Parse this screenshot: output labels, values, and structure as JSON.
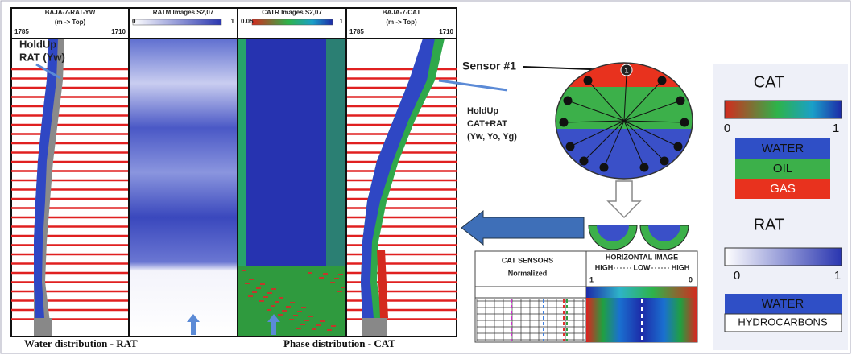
{
  "tracks": [
    {
      "title": "BAJA-7-RAT-YW",
      "subtitle": "(m -> Top)",
      "left": "1785",
      "right": "1710"
    },
    {
      "title": "RATM Images S2,07",
      "left": "0",
      "right": "1"
    },
    {
      "title": "CATR Images S2,07",
      "left": "0.05",
      "right": "1"
    },
    {
      "title": "BAJA-7-CAT",
      "subtitle": "(m -> Top)",
      "left": "1785",
      "right": "1710"
    }
  ],
  "annotations": {
    "holdup_rat": [
      "HoldUp",
      "RAT (Yw)"
    ],
    "sensor": "Sensor #1",
    "sensor_number": "1",
    "holdup_cat": [
      "HoldUp",
      "CAT+RAT",
      "(Yw, Yo, Yg)"
    ],
    "water_distribution": "Water distribution  -  RAT",
    "phase_distribution": "Phase distribution - CAT"
  },
  "table": {
    "col1": [
      "CAT SENSORS",
      "Normalized"
    ],
    "col2_title": "HORIZONTAL IMAGE",
    "scale": [
      "HIGH",
      "LOW",
      "HIGH"
    ],
    "ends": [
      "1",
      "0"
    ]
  },
  "legends": {
    "cat": {
      "title": "CAT",
      "min": "0",
      "max": "1",
      "phases": [
        "WATER",
        "OIL",
        "GAS"
      ]
    },
    "rat": {
      "title": "RAT",
      "min": "0",
      "max": "1",
      "phases": [
        "WATER",
        "HYDROCARBONS"
      ]
    }
  }
}
